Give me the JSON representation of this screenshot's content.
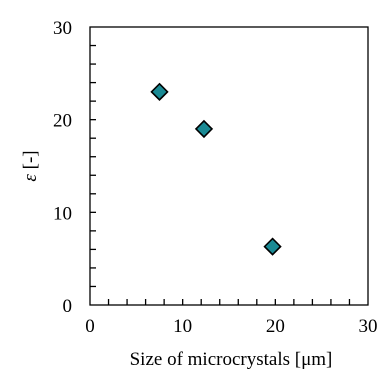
{
  "chart_data": {
    "type": "scatter",
    "xlabel": "Size of microcrystals [μm]",
    "ylabel_symbol": "ε",
    "ylabel_unit": " [-]",
    "xlim": [
      0,
      30
    ],
    "ylim": [
      0,
      30
    ],
    "x_ticks": [
      0,
      10,
      20,
      30
    ],
    "y_ticks": [
      0,
      10,
      20,
      30
    ],
    "x_minor_step": 2,
    "y_minor_step": 2,
    "grid": false,
    "legend": "none",
    "marker": "diamond",
    "colors": {
      "marker_fill": "#1a8a94",
      "marker_edge": "#000000",
      "axis": "#000000"
    },
    "series": [
      {
        "x": [
          7.5,
          12.3,
          19.7
        ],
        "y": [
          23.0,
          19.0,
          6.3
        ]
      }
    ]
  }
}
